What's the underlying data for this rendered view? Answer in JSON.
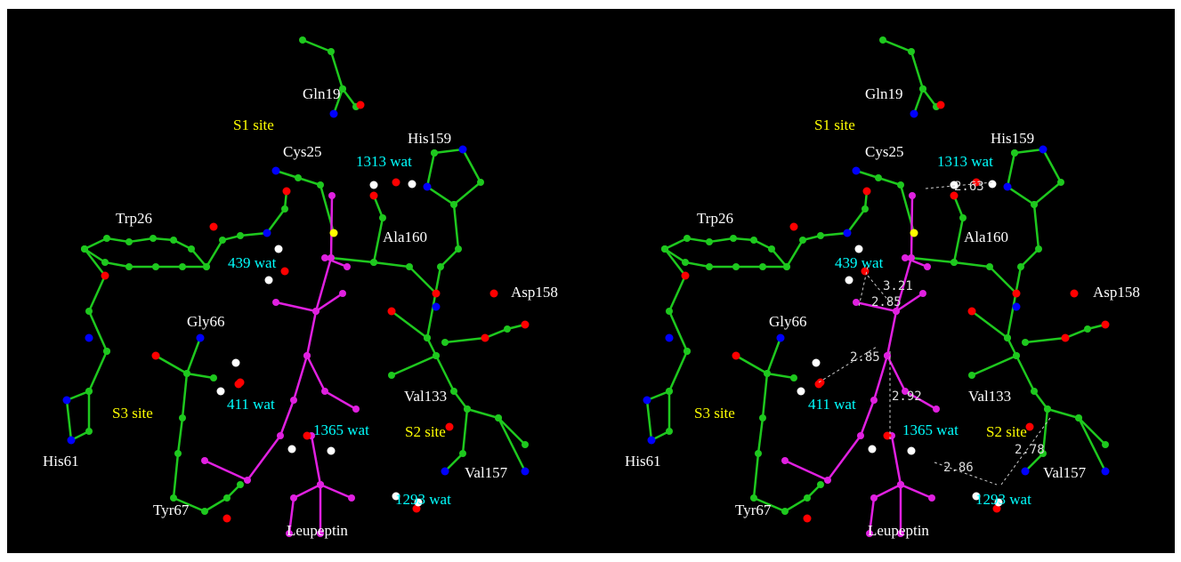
{
  "left_panel": {
    "labels": [
      "Gln19",
      "S1 site",
      "Cys25",
      "His159",
      "1313 wat",
      "Trp26",
      "Ala160",
      "439 wat",
      "Asp158",
      "Gly66",
      "411 wat",
      "Val133",
      "S3 site",
      "1365 wat",
      "S2 site",
      "His61",
      "Val157",
      "Tyr67",
      "1293 wat",
      "Leupeptin"
    ]
  },
  "right_panel": {
    "labels": [
      "Gln19",
      "S1 site",
      "Cys25",
      "His159",
      "1313 wat",
      "Trp26",
      "Ala160",
      "439 wat",
      "Asp158",
      "Gly66",
      "411 wat",
      "Val133",
      "S3 site",
      "1365 wat",
      "S2 site",
      "His61",
      "Val157",
      "Tyr67",
      "1293 wat",
      "Leupeptin"
    ],
    "distances": [
      2.63,
      3.21,
      2.85,
      2.85,
      2.92,
      2.86,
      2.78
    ]
  }
}
